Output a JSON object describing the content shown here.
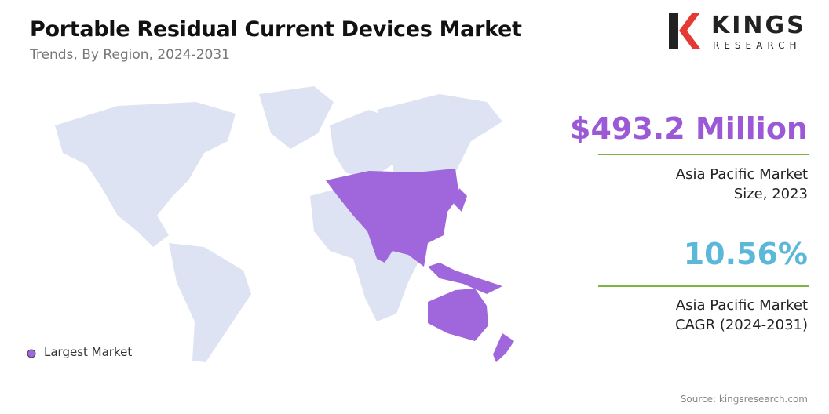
{
  "header": {
    "title": "Portable Residual Current Devices Market",
    "subtitle": "Trends, By Region, 2024-2031"
  },
  "logo": {
    "name": "KINGS",
    "tagline": "RESEARCH"
  },
  "stats": [
    {
      "value": "$493.2 Million",
      "label": [
        "Asia Pacific Market",
        "Size, 2023"
      ]
    },
    {
      "value": "10.56%",
      "label": [
        "Asia Pacific Market",
        "CAGR (2024-2031)"
      ]
    }
  ],
  "legend": {
    "label": "Largest Market"
  },
  "source": "Source: kingsresearch.com"
}
